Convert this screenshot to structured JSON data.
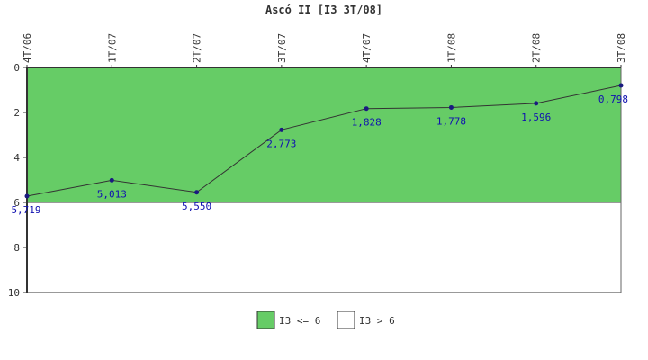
{
  "chart_data": {
    "type": "line",
    "title": "Ascó II [I3 3T/08]",
    "categories": [
      "4T/06",
      "1T/07",
      "2T/07",
      "3T/07",
      "4T/07",
      "1T/08",
      "2T/08",
      "3T/08"
    ],
    "series": [
      {
        "values": [
          5.719,
          5.013,
          5.55,
          2.773,
          1.828,
          1.778,
          1.596,
          0.798
        ],
        "labels": [
          "5,719",
          "5,013",
          "5,550",
          "2,773",
          "1,828",
          "1,778",
          "1,596",
          "0,798"
        ],
        "color": "#1a1a80"
      }
    ],
    "y_ticks": [
      "0",
      "2",
      "4",
      "6",
      "8",
      "10"
    ],
    "ylim": [
      0,
      10
    ],
    "y_inverted": true,
    "threshold": 6,
    "bands": [
      {
        "label": "I3 <= 6",
        "from": 0,
        "to": 6,
        "color": "#66cc66"
      },
      {
        "label": "I3 > 6",
        "from": 6,
        "to": 10,
        "color": "#ffffff"
      }
    ],
    "legend_position": "bottom-center",
    "grid": false
  }
}
